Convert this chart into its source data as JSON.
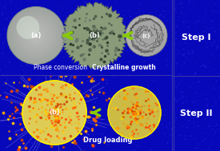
{
  "bg_color": "#0808bb",
  "arrow_color": "#88cc00",
  "text_color": "#ffffff",
  "step1_label": "Step I",
  "step2_label": "Step II",
  "phase_label": "Phase conversion",
  "crystal_label": "Crystalline growth",
  "drug_label": "Drug loading",
  "sphere_a_label": "(a)",
  "sphere_b_label": "(b)",
  "sphere_c_label": "(c)",
  "sphere_b2_label": "(b)",
  "spike_color": "#aaaaff",
  "particle_colors": [
    "#ff6600",
    "#ffaa00",
    "#ff4400",
    "#ffcc00",
    "#cc4400",
    "#ff8800"
  ],
  "divider_color": "#555599"
}
